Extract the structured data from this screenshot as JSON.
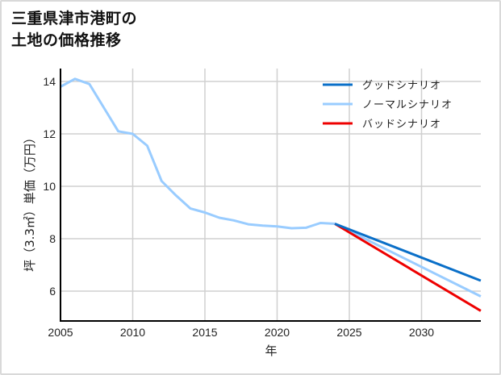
{
  "title": {
    "line1": "三重県津市港町の",
    "line2": "土地の価格推移"
  },
  "colors": {
    "good": "#0a6fc8",
    "normal": "#99ccff",
    "bad": "#ee0000",
    "grid": "#d0d0d0",
    "axis": "#000000"
  },
  "chart_data": {
    "type": "line",
    "title": "三重県津市港町の土地の価格推移",
    "xlabel": "年",
    "ylabel": "坪（3.3㎡）単価（万円）",
    "xlim": [
      2005,
      2034.1
    ],
    "ylim": [
      4.9,
      14.6
    ],
    "xticks": [
      2005,
      2010,
      2015,
      2020,
      2025,
      2030
    ],
    "yticks": [
      6,
      8,
      10,
      12,
      14
    ],
    "grid": true,
    "legend_position": "upper right",
    "series": [
      {
        "name": "グッドシナリオ",
        "color": "#0a6fc8",
        "x": [
          2024,
          2034.1
        ],
        "y": [
          8.57,
          6.4
        ]
      },
      {
        "name": "ノーマルシナリオ",
        "color": "#99ccff",
        "x": [
          2005,
          2006,
          2007,
          2008,
          2009,
          2010,
          2011,
          2012,
          2013,
          2014,
          2015,
          2016,
          2017,
          2018,
          2019,
          2020,
          2021,
          2022,
          2023,
          2024,
          2034.1
        ],
        "y": [
          13.8,
          14.1,
          13.9,
          13.0,
          12.1,
          12.0,
          11.55,
          10.2,
          9.65,
          9.15,
          9.0,
          8.8,
          8.7,
          8.55,
          8.5,
          8.47,
          8.4,
          8.42,
          8.6,
          8.57,
          5.8
        ]
      },
      {
        "name": "バッドシナリオ",
        "color": "#ee0000",
        "x": [
          2024,
          2034.1
        ],
        "y": [
          8.57,
          5.25
        ]
      }
    ]
  }
}
